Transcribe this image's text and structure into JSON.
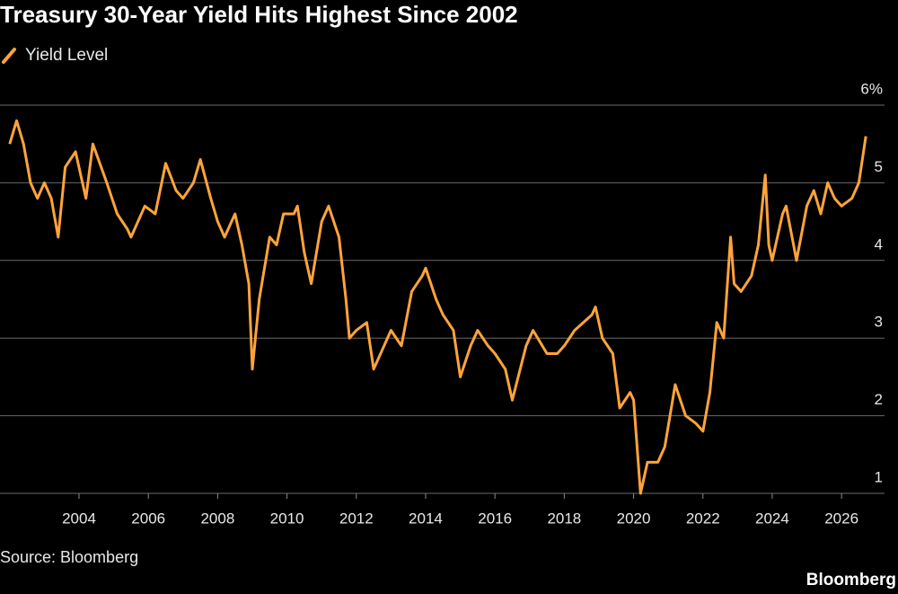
{
  "chart_data": {
    "type": "line",
    "title": "Treasury 30-Year Yield Hits Highest Since 2002",
    "source": "Source: Bloomberg",
    "brand": "Bloomberg",
    "series": [
      {
        "name": "Yield Level",
        "color": "#ffa43a",
        "x": [
          2002.0,
          2002.2,
          2002.4,
          2002.6,
          2002.8,
          2003.0,
          2003.2,
          2003.4,
          2003.6,
          2003.9,
          2004.2,
          2004.4,
          2004.8,
          2005.1,
          2005.4,
          2005.5,
          2005.9,
          2006.2,
          2006.5,
          2006.8,
          2007.0,
          2007.3,
          2007.5,
          2007.8,
          2008.0,
          2008.2,
          2008.5,
          2008.7,
          2008.9,
          2009.0,
          2009.2,
          2009.5,
          2009.7,
          2009.9,
          2010.2,
          2010.3,
          2010.5,
          2010.7,
          2011.0,
          2011.2,
          2011.5,
          2011.7,
          2011.8,
          2012.0,
          2012.3,
          2012.5,
          2012.8,
          2013.0,
          2013.3,
          2013.6,
          2013.9,
          2014.0,
          2014.3,
          2014.5,
          2014.8,
          2015.0,
          2015.3,
          2015.5,
          2015.8,
          2016.0,
          2016.3,
          2016.5,
          2016.9,
          2017.1,
          2017.5,
          2017.8,
          2018.0,
          2018.3,
          2018.8,
          2018.9,
          2019.1,
          2019.4,
          2019.6,
          2019.9,
          2020.0,
          2020.2,
          2020.4,
          2020.7,
          2020.9,
          2021.2,
          2021.5,
          2021.8,
          2022.0,
          2022.2,
          2022.4,
          2022.6,
          2022.8,
          2022.9,
          2023.1,
          2023.4,
          2023.6,
          2023.8,
          2023.9,
          2024.0,
          2024.3,
          2024.4,
          2024.7,
          2025.0,
          2025.2,
          2025.4,
          2025.6,
          2025.8,
          2026.0,
          2026.3,
          2026.5,
          2026.7
        ],
        "values": [
          5.5,
          5.8,
          5.5,
          5.0,
          4.8,
          5.0,
          4.8,
          4.3,
          5.2,
          5.4,
          4.8,
          5.5,
          5.0,
          4.6,
          4.4,
          4.3,
          4.7,
          4.6,
          5.25,
          4.9,
          4.8,
          5.0,
          5.3,
          4.8,
          4.5,
          4.3,
          4.6,
          4.2,
          3.7,
          2.6,
          3.5,
          4.3,
          4.2,
          4.6,
          4.6,
          4.7,
          4.1,
          3.7,
          4.5,
          4.7,
          4.3,
          3.5,
          3.0,
          3.1,
          3.2,
          2.6,
          2.9,
          3.1,
          2.9,
          3.6,
          3.8,
          3.9,
          3.5,
          3.3,
          3.1,
          2.5,
          2.9,
          3.1,
          2.9,
          2.8,
          2.6,
          2.2,
          2.9,
          3.1,
          2.8,
          2.8,
          2.9,
          3.1,
          3.3,
          3.4,
          3.0,
          2.8,
          2.1,
          2.3,
          2.2,
          1.0,
          1.4,
          1.4,
          1.6,
          2.4,
          2.0,
          1.9,
          1.8,
          2.3,
          3.2,
          3.0,
          4.3,
          3.7,
          3.6,
          3.8,
          4.2,
          5.1,
          4.2,
          4.0,
          4.6,
          4.7,
          4.0,
          4.7,
          4.9,
          4.6,
          5.0,
          4.8,
          4.7,
          4.8,
          5.0,
          5.6
        ]
      }
    ],
    "xlim": [
      2001.72,
      2027.24
    ],
    "xticks": [
      2004,
      2006,
      2008,
      2010,
      2012,
      2014,
      2016,
      2018,
      2020,
      2022,
      2024,
      2026
    ],
    "ylim": [
      1,
      6
    ],
    "yticks": [
      1,
      2,
      3,
      4,
      5,
      {
        "value": 6,
        "label": "6%"
      }
    ],
    "grid": true,
    "legend": "top-left"
  }
}
